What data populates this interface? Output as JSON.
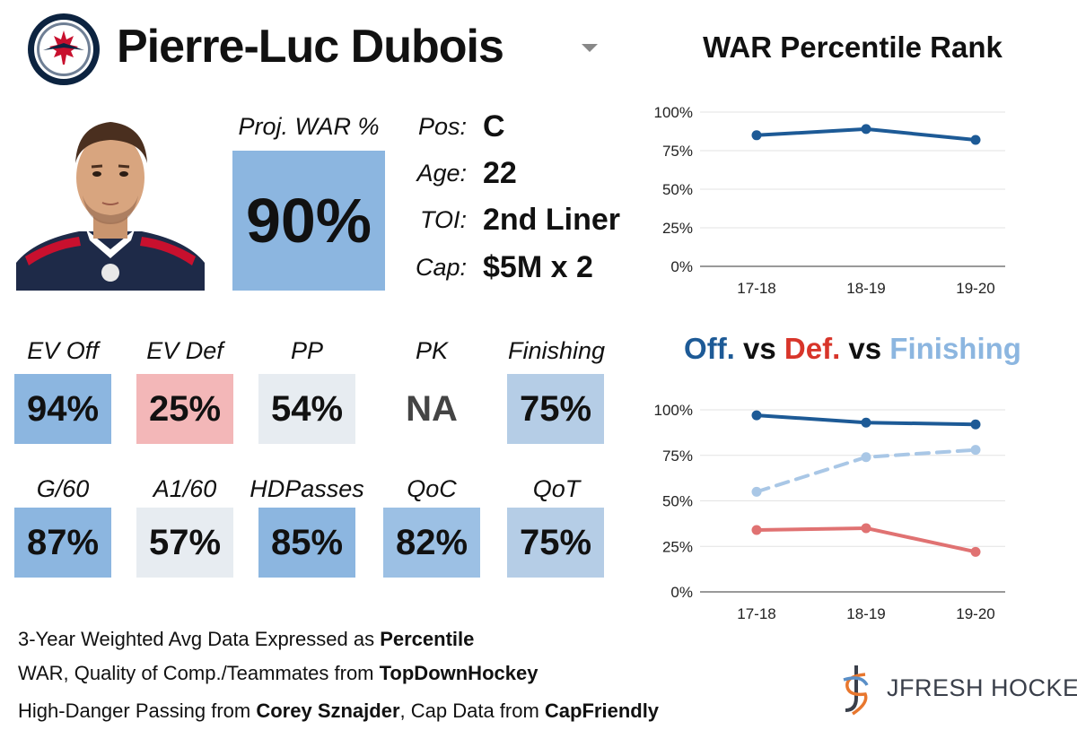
{
  "header": {
    "player_name": "Pierre-Luc Dubois",
    "logo_icon": "jets-logo-icon",
    "dropdown_icon": "chevron-down-icon"
  },
  "projection": {
    "label": "Proj. WAR %",
    "value": "90%",
    "color": "#8cb6e0"
  },
  "info": [
    {
      "label": "Pos:",
      "value": "C"
    },
    {
      "label": "Age:",
      "value": "22"
    },
    {
      "label": "TOI:",
      "value": "2nd Liner"
    },
    {
      "label": "Cap:",
      "value": "$5M x 2"
    }
  ],
  "stats_row1": [
    {
      "label": "EV Off",
      "value": "94%",
      "color": "#8cb6e0"
    },
    {
      "label": "EV Def",
      "value": "25%",
      "color": "#f3b7b8"
    },
    {
      "label": "PP",
      "value": "54%",
      "color": "#e7ecf1"
    },
    {
      "label": "PK",
      "value": "NA",
      "color": "#ffffff"
    },
    {
      "label": "Finishing",
      "value": "75%",
      "color": "#b5cde6"
    }
  ],
  "stats_row2": [
    {
      "label": "G/60",
      "value": "87%",
      "color": "#8cb6e0"
    },
    {
      "label": "A1/60",
      "value": "57%",
      "color": "#e7ecf1"
    },
    {
      "label": "HDPasses",
      "value": "85%",
      "color": "#8cb6e0"
    },
    {
      "label": "QoC",
      "value": "82%",
      "color": "#9cc0e4"
    },
    {
      "label": "QoT",
      "value": "75%",
      "color": "#b5cde6"
    }
  ],
  "footnotes": {
    "line1_prefix": "3-Year Weighted Avg Data Expressed as ",
    "line1_bold": "Percentile",
    "line2_prefix": "WAR, Quality of Comp./Teammates from ",
    "line2_bold": "TopDownHockey",
    "line3_prefix": "High-Danger Passing from ",
    "line3_bold1": "Corey Sznajder",
    "line3_mid": ", Cap Data from ",
    "line3_bold2": "CapFriendly"
  },
  "brand": {
    "name": "JFRESH HOCKEY",
    "icon": "jfresh-logo-icon"
  },
  "chart_data": [
    {
      "type": "line",
      "title": "WAR Percentile Rank",
      "categories": [
        "17-18",
        "18-19",
        "19-20"
      ],
      "ylim": [
        0,
        100
      ],
      "yticks": [
        "0%",
        "25%",
        "50%",
        "75%",
        "100%"
      ],
      "series": [
        {
          "values": [
            85,
            89,
            82
          ],
          "color": "#1d5a96",
          "dash": false
        }
      ]
    },
    {
      "type": "line",
      "title_parts": [
        {
          "text": "Off.",
          "color": "#1d5a96"
        },
        {
          "text": " vs ",
          "color": "#111111"
        },
        {
          "text": "Def.",
          "color": "#d8352a"
        },
        {
          "text": " vs ",
          "color": "#111111"
        },
        {
          "text": "Finishing",
          "color": "#8cb6e0"
        }
      ],
      "categories": [
        "17-18",
        "18-19",
        "19-20"
      ],
      "ylim": [
        0,
        100
      ],
      "yticks": [
        "0%",
        "25%",
        "50%",
        "75%",
        "100%"
      ],
      "series": [
        {
          "name": "Off.",
          "values": [
            97,
            93,
            92
          ],
          "color": "#1d5a96",
          "dash": false
        },
        {
          "name": "Def.",
          "values": [
            34,
            35,
            22
          ],
          "color": "#e07272",
          "dash": false
        },
        {
          "name": "Finishing",
          "values": [
            55,
            74,
            78
          ],
          "color": "#a9c7e6",
          "dash": true
        }
      ]
    }
  ]
}
